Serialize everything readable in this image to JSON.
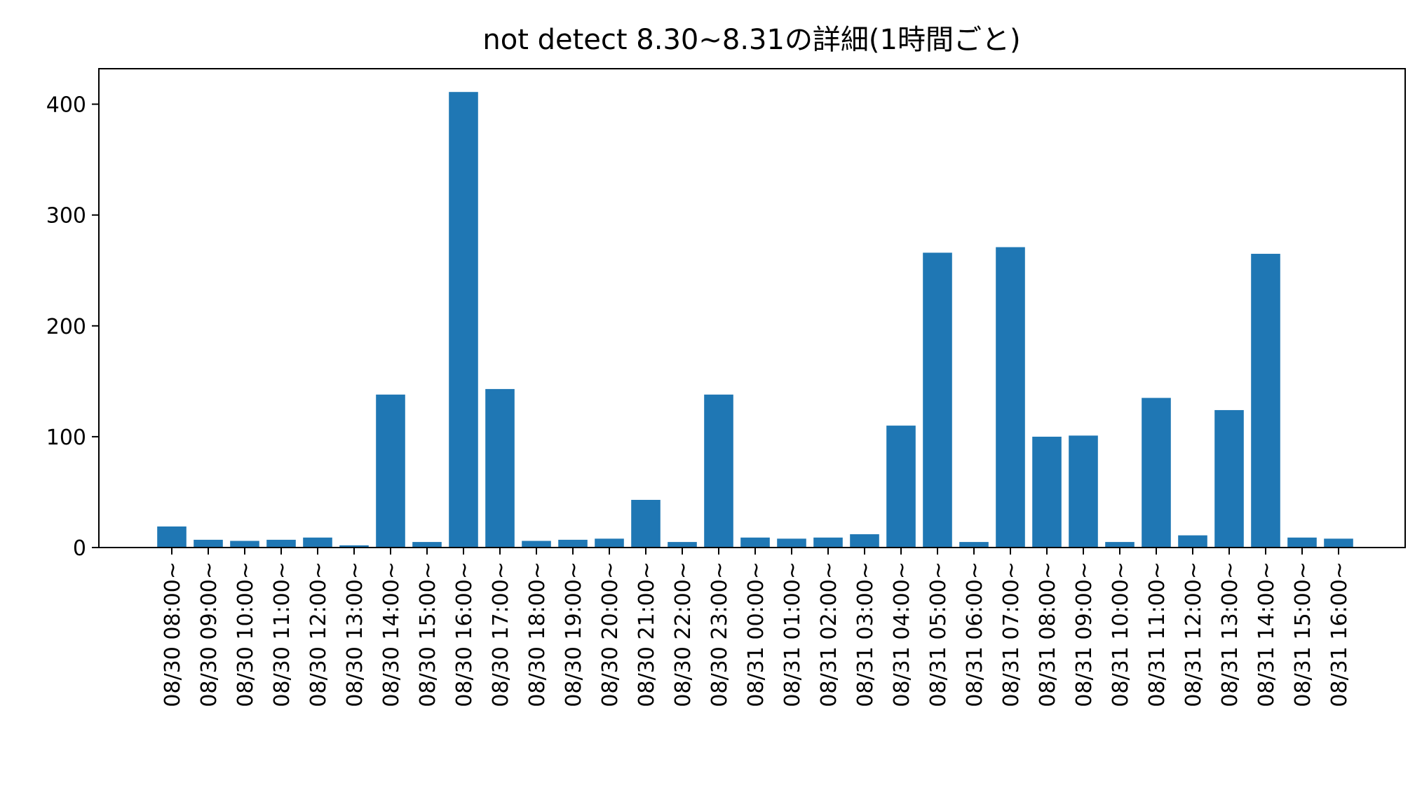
{
  "chart_data": {
    "type": "bar",
    "title": "not detect 8.30~8.31の詳細(1時間ごと)",
    "xlabel": "",
    "ylabel": "",
    "ylim": [
      0,
      432
    ],
    "yticks": [
      0,
      100,
      200,
      300,
      400
    ],
    "grid": false,
    "bar_color": "#1f77b4",
    "categories": [
      "08/30 08:00~",
      "08/30 09:00~",
      "08/30 10:00~",
      "08/30 11:00~",
      "08/30 12:00~",
      "08/30 13:00~",
      "08/30 14:00~",
      "08/30 15:00~",
      "08/30 16:00~",
      "08/30 17:00~",
      "08/30 18:00~",
      "08/30 19:00~",
      "08/30 20:00~",
      "08/30 21:00~",
      "08/30 22:00~",
      "08/30 23:00~",
      "08/31 00:00~",
      "08/31 01:00~",
      "08/31 02:00~",
      "08/31 03:00~",
      "08/31 04:00~",
      "08/31 05:00~",
      "08/31 06:00~",
      "08/31 07:00~",
      "08/31 08:00~",
      "08/31 09:00~",
      "08/31 10:00~",
      "08/31 11:00~",
      "08/31 12:00~",
      "08/31 13:00~",
      "08/31 14:00~",
      "08/31 15:00~",
      "08/31 16:00~"
    ],
    "values": [
      19,
      7,
      6,
      7,
      9,
      2,
      138,
      5,
      411,
      143,
      6,
      7,
      8,
      43,
      5,
      138,
      9,
      8,
      9,
      12,
      110,
      266,
      5,
      271,
      100,
      101,
      5,
      135,
      11,
      124,
      265,
      9,
      8
    ]
  }
}
